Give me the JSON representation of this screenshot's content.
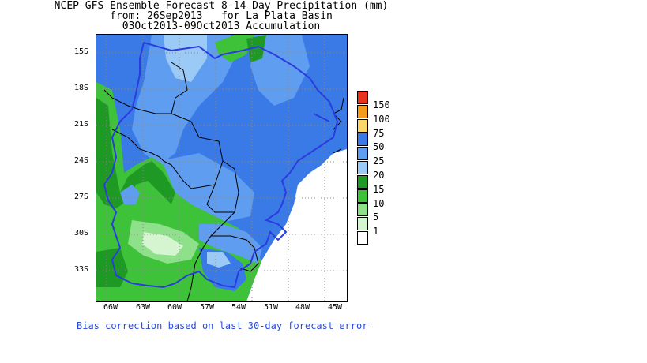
{
  "title": {
    "line1": "NCEP GFS Ensemble Forecast 8-14 Day Precipitation (mm)",
    "line2": "from: 26Sep2013   for La_Plata_Basin",
    "line3": "03Oct2013-09Oct2013 Accumulation"
  },
  "map": {
    "region": "La_Plata_Basin",
    "lat_labels": [
      "15S",
      "18S",
      "21S",
      "24S",
      "27S",
      "30S",
      "33S"
    ],
    "lon_labels": [
      "66W",
      "63W",
      "60W",
      "57W",
      "54W",
      "51W",
      "48W",
      "45W"
    ],
    "basin_outline_color": "#2a3ce0",
    "border_color": "#000000",
    "grid_style": "dotted"
  },
  "legend": {
    "items": [
      {
        "label": "150",
        "color": "#e8341c"
      },
      {
        "label": "100",
        "color": "#f59b1a"
      },
      {
        "label": "75",
        "color": "#fbd668"
      },
      {
        "label": "50",
        "color": "#3a7ae6"
      },
      {
        "label": "25",
        "color": "#5f9df0"
      },
      {
        "label": "20",
        "color": "#9ccaf6"
      },
      {
        "label": "15",
        "color": "#1e9a24"
      },
      {
        "label": "10",
        "color": "#3ec23a"
      },
      {
        "label": "5",
        "color": "#8fe08a"
      },
      {
        "label": "1",
        "color": "#d4f5cf"
      },
      {
        "label": "",
        "color": "#ffffff"
      }
    ]
  },
  "footer": {
    "text": "Bias correction based on last 30-day forecast error"
  }
}
